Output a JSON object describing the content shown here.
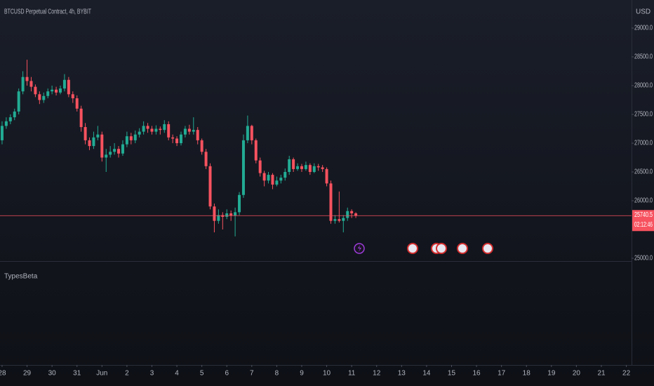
{
  "chart_data": {
    "type": "candlestick",
    "title": "BTCUSD Perpetual Contract, 4h, BYBIT",
    "y_axis_label": "USD",
    "pane_title": "TypesBeta",
    "x": [
      0,
      4,
      8,
      12,
      16,
      20,
      24,
      28,
      32,
      36,
      40,
      44,
      48,
      52,
      56,
      60,
      64,
      68,
      72,
      76,
      80,
      84,
      88,
      92,
      96,
      100,
      104,
      108,
      112,
      116,
      120,
      124,
      128,
      132,
      136,
      140,
      144,
      148,
      152,
      156,
      160,
      164,
      168,
      172,
      176,
      180,
      184,
      188,
      192,
      196,
      200,
      204,
      208,
      212,
      216,
      220,
      224,
      228,
      232,
      236,
      240,
      244,
      248,
      252,
      256,
      260,
      264,
      268,
      272,
      276,
      280,
      284,
      288,
      292,
      296,
      300,
      304,
      308,
      312,
      316,
      320,
      324,
      328,
      332,
      336,
      340
    ],
    "open": [
      27050,
      27300,
      27380,
      27450,
      27550,
      27900,
      28150,
      28080,
      27980,
      27850,
      27750,
      27820,
      27900,
      27930,
      27880,
      27950,
      28100,
      27850,
      27780,
      27600,
      27280,
      27050,
      26950,
      27100,
      27150,
      26750,
      26800,
      26850,
      26900,
      26820,
      26980,
      27120,
      27050,
      27150,
      27200,
      27300,
      27250,
      27200,
      27250,
      27230,
      27330,
      27100,
      27080,
      27000,
      27150,
      27250,
      27200,
      27230,
      27050,
      26850,
      26600,
      25900,
      25650,
      25750,
      25720,
      25780,
      25740,
      25800,
      26100,
      27050,
      27300,
      27050,
      26700,
      26480,
      26350,
      26450,
      26280,
      26350,
      26400,
      26500,
      26720,
      26550,
      26600,
      26550,
      26620,
      26500,
      26600,
      26580,
      26550,
      26300,
      25650,
      25680,
      25650,
      25700,
      25820,
      25780
    ],
    "high": [
      27380,
      27450,
      27500,
      27600,
      27950,
      28250,
      28450,
      28150,
      28020,
      27900,
      27880,
      27950,
      28000,
      27980,
      28000,
      28200,
      28150,
      27900,
      27830,
      27650,
      27350,
      27100,
      27200,
      27300,
      27200,
      26900,
      26950,
      27000,
      26950,
      27050,
      27200,
      27180,
      27220,
      27260,
      27380,
      27350,
      27300,
      27310,
      27290,
      27400,
      27380,
      27150,
      27120,
      27200,
      27300,
      27320,
      27450,
      27280,
      27080,
      26900,
      26650,
      25950,
      25850,
      25800,
      25850,
      25830,
      25880,
      26150,
      27150,
      27480,
      27320,
      27080,
      26750,
      26520,
      26500,
      26480,
      26420,
      26450,
      26560,
      26780,
      26750,
      26650,
      26640,
      26680,
      26650,
      26650,
      26640,
      26620,
      26580,
      26350,
      25750,
      26160,
      25750,
      25880,
      25850,
      25800
    ],
    "low": [
      26980,
      27250,
      27330,
      27400,
      27500,
      27850,
      28000,
      27900,
      27800,
      27680,
      27700,
      27780,
      27850,
      27830,
      27850,
      27900,
      27800,
      27700,
      27550,
      27200,
      26980,
      26880,
      26900,
      27050,
      26680,
      26500,
      26750,
      26800,
      26750,
      26780,
      26930,
      26980,
      27000,
      27100,
      27150,
      27180,
      27150,
      27150,
      27150,
      27180,
      27050,
      27000,
      26950,
      26960,
      27100,
      27150,
      27150,
      26980,
      26800,
      26550,
      25850,
      25450,
      25600,
      25500,
      25680,
      25650,
      25380,
      25750,
      26050,
      27000,
      26980,
      26650,
      26420,
      26250,
      26300,
      26200,
      26250,
      26300,
      26350,
      26450,
      26500,
      26520,
      26500,
      26520,
      26450,
      26480,
      26520,
      26500,
      26250,
      25600,
      25600,
      25620,
      25450,
      25650,
      25700,
      25700
    ],
    "close": [
      27300,
      27380,
      27450,
      27550,
      27900,
      28150,
      28080,
      27980,
      27850,
      27750,
      27820,
      27900,
      27930,
      27880,
      27950,
      28100,
      27850,
      27780,
      27600,
      27280,
      27050,
      26950,
      27100,
      27150,
      26750,
      26800,
      26850,
      26900,
      26820,
      26980,
      27120,
      27050,
      27150,
      27200,
      27300,
      27250,
      27200,
      27250,
      27230,
      27330,
      27100,
      27080,
      27000,
      27150,
      27250,
      27200,
      27230,
      27050,
      26850,
      26600,
      25900,
      25650,
      25750,
      25720,
      25780,
      25740,
      25800,
      26100,
      27050,
      27300,
      27050,
      26700,
      26480,
      26350,
      26450,
      26280,
      26350,
      26400,
      26500,
      26720,
      26550,
      26600,
      26550,
      26620,
      26500,
      26600,
      26580,
      26550,
      26300,
      25650,
      25680,
      25650,
      25700,
      25820,
      25780,
      25740.5
    ],
    "up_color": "#22ab94",
    "down_color": "#f7525f",
    "last_price": 25740.5,
    "countdown": "02:12:46",
    "xlim": [
      -2,
      605
    ],
    "ylim": [
      24951,
      29488
    ],
    "xticks": [
      {
        "value": 0,
        "label": "28"
      },
      {
        "value": 24,
        "label": "29"
      },
      {
        "value": 48,
        "label": "30"
      },
      {
        "value": 72,
        "label": "31"
      },
      {
        "value": 96,
        "label": "Jun"
      },
      {
        "value": 120,
        "label": "2"
      },
      {
        "value": 144,
        "label": "3"
      },
      {
        "value": 168,
        "label": "4"
      },
      {
        "value": 192,
        "label": "5"
      },
      {
        "value": 216,
        "label": "6"
      },
      {
        "value": 240,
        "label": "7"
      },
      {
        "value": 264,
        "label": "8"
      },
      {
        "value": 288,
        "label": "9"
      },
      {
        "value": 312,
        "label": "10"
      },
      {
        "value": 336,
        "label": "11"
      },
      {
        "value": 360,
        "label": "12"
      },
      {
        "value": 384,
        "label": "13"
      },
      {
        "value": 408,
        "label": "14"
      },
      {
        "value": 432,
        "label": "15"
      },
      {
        "value": 456,
        "label": "16"
      },
      {
        "value": 480,
        "label": "17"
      },
      {
        "value": 504,
        "label": "18"
      },
      {
        "value": 528,
        "label": "19"
      },
      {
        "value": 552,
        "label": "20"
      },
      {
        "value": 576,
        "label": "21"
      },
      {
        "value": 600,
        "label": "22"
      }
    ],
    "yticks": [
      {
        "value": 25000,
        "label": "25000.0"
      },
      {
        "value": 26000,
        "label": "26000.0"
      },
      {
        "value": 26500,
        "label": "26500.0"
      },
      {
        "value": 27000,
        "label": "27000.0"
      },
      {
        "value": 27500,
        "label": "27500.0"
      },
      {
        "value": 28000,
        "label": "28000.0"
      },
      {
        "value": 28500,
        "label": "28500.0"
      },
      {
        "value": 29000,
        "label": "29000.0"
      }
    ]
  }
}
